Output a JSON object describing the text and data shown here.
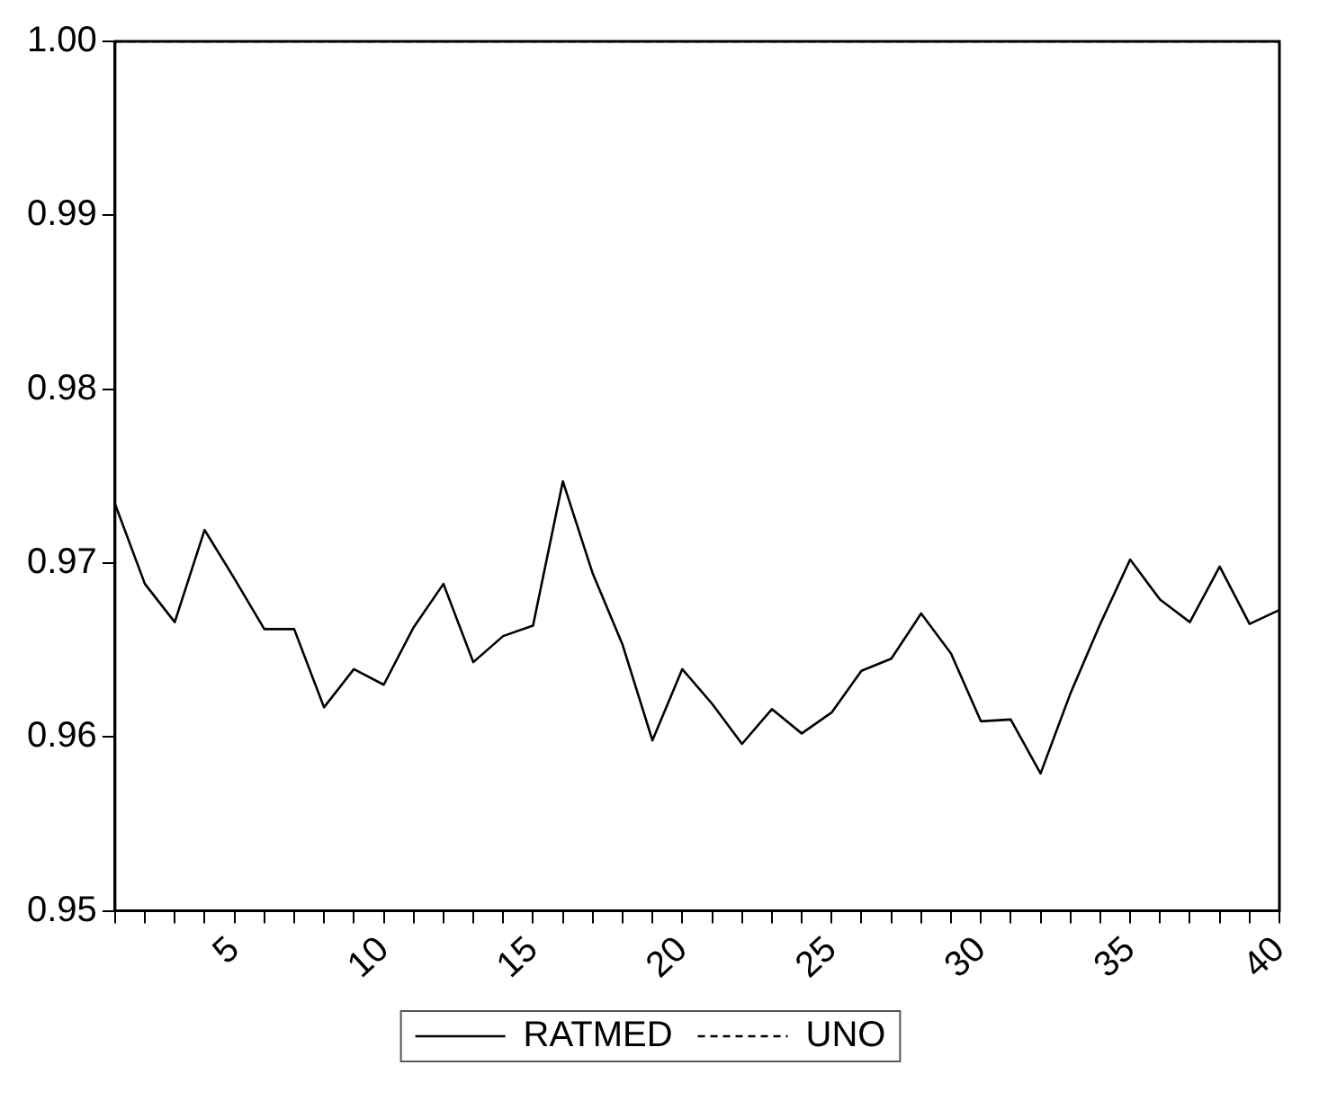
{
  "chart_data": {
    "type": "line",
    "x": [
      1,
      2,
      3,
      4,
      5,
      6,
      7,
      8,
      9,
      10,
      11,
      12,
      13,
      14,
      15,
      16,
      17,
      18,
      19,
      20,
      21,
      22,
      23,
      24,
      25,
      26,
      27,
      28,
      29,
      30,
      31,
      32,
      33,
      34,
      35,
      36,
      37,
      38,
      39,
      40
    ],
    "series": [
      {
        "name": "RATMED",
        "color": "#000000",
        "line_style": "solid",
        "values": [
          0.9734,
          0.9688,
          0.9666,
          0.9719,
          0.9691,
          0.9662,
          0.9662,
          0.9617,
          0.9639,
          0.963,
          0.9663,
          0.9688,
          0.9643,
          0.9658,
          0.9664,
          0.9747,
          0.9694,
          0.9653,
          0.9598,
          0.9639,
          0.9619,
          0.9596,
          0.9616,
          0.9602,
          0.9614,
          0.9638,
          0.9645,
          0.9671,
          0.9648,
          0.9609,
          0.961,
          0.9579,
          0.9625,
          0.9665,
          0.9702,
          0.9679,
          0.9666,
          0.9698,
          0.9665,
          0.9673
        ]
      },
      {
        "name": "UNO",
        "color": "#000000",
        "line_style": "dashed",
        "values": [
          1,
          1,
          1,
          1,
          1,
          1,
          1,
          1,
          1,
          1,
          1,
          1,
          1,
          1,
          1,
          1,
          1,
          1,
          1,
          1,
          1,
          1,
          1,
          1,
          1,
          1,
          1,
          1,
          1,
          1,
          1,
          1,
          1,
          1,
          1,
          1,
          1,
          1,
          1,
          1
        ]
      }
    ],
    "xlim": [
      1,
      40
    ],
    "xticks": [
      {
        "value": 1,
        "label": null
      },
      {
        "value": 2,
        "label": null
      },
      {
        "value": 3,
        "label": null
      },
      {
        "value": 4,
        "label": null
      },
      5,
      {
        "value": 6,
        "label": null
      },
      {
        "value": 7,
        "label": null
      },
      {
        "value": 8,
        "label": null
      },
      {
        "value": 9,
        "label": null
      },
      10,
      {
        "value": 11,
        "label": null
      },
      {
        "value": 12,
        "label": null
      },
      {
        "value": 13,
        "label": null
      },
      {
        "value": 14,
        "label": null
      },
      15,
      {
        "value": 16,
        "label": null
      },
      {
        "value": 17,
        "label": null
      },
      {
        "value": 18,
        "label": null
      },
      {
        "value": 19,
        "label": null
      },
      20,
      {
        "value": 21,
        "label": null
      },
      {
        "value": 22,
        "label": null
      },
      {
        "value": 23,
        "label": null
      },
      {
        "value": 24,
        "label": null
      },
      25,
      {
        "value": 26,
        "label": null
      },
      {
        "value": 27,
        "label": null
      },
      {
        "value": 28,
        "label": null
      },
      {
        "value": 29,
        "label": null
      },
      30,
      {
        "value": 31,
        "label": null
      },
      {
        "value": 32,
        "label": null
      },
      {
        "value": 33,
        "label": null
      },
      {
        "value": 34,
        "label": null
      },
      35,
      {
        "value": 36,
        "label": null
      },
      {
        "value": 37,
        "label": null
      },
      {
        "value": 38,
        "label": null
      },
      {
        "value": 39,
        "label": null
      },
      40
    ],
    "ylim": [
      0.95,
      1
    ],
    "yticks": [
      0.95,
      0.96,
      0.97,
      0.98,
      0.99,
      {
        "value": 1,
        "label": "1.00"
      }
    ],
    "grid": false,
    "legend": "bottom",
    "marker": "none"
  }
}
